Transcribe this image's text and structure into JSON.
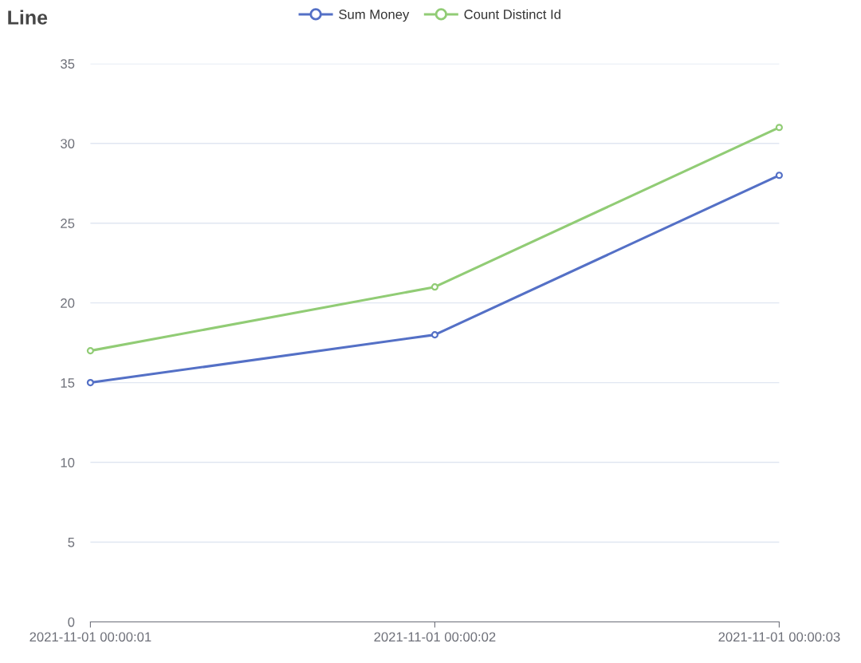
{
  "chart_data": {
    "type": "line",
    "title": "Line",
    "categories": [
      "2021-11-01 00:00:01",
      "2021-11-01 00:00:02",
      "2021-11-01 00:00:03"
    ],
    "series": [
      {
        "name": "Sum Money",
        "color": "#5470c6",
        "values": [
          15,
          18,
          28
        ]
      },
      {
        "name": "Count Distinct Id",
        "color": "#91cc75",
        "values": [
          17,
          21,
          31
        ]
      }
    ],
    "ylim": [
      0,
      35
    ],
    "yticks": [
      0,
      5,
      10,
      15,
      20,
      25,
      30,
      35
    ],
    "grid": "y",
    "legend": "top",
    "marker": "circle",
    "line_style": "solid"
  }
}
